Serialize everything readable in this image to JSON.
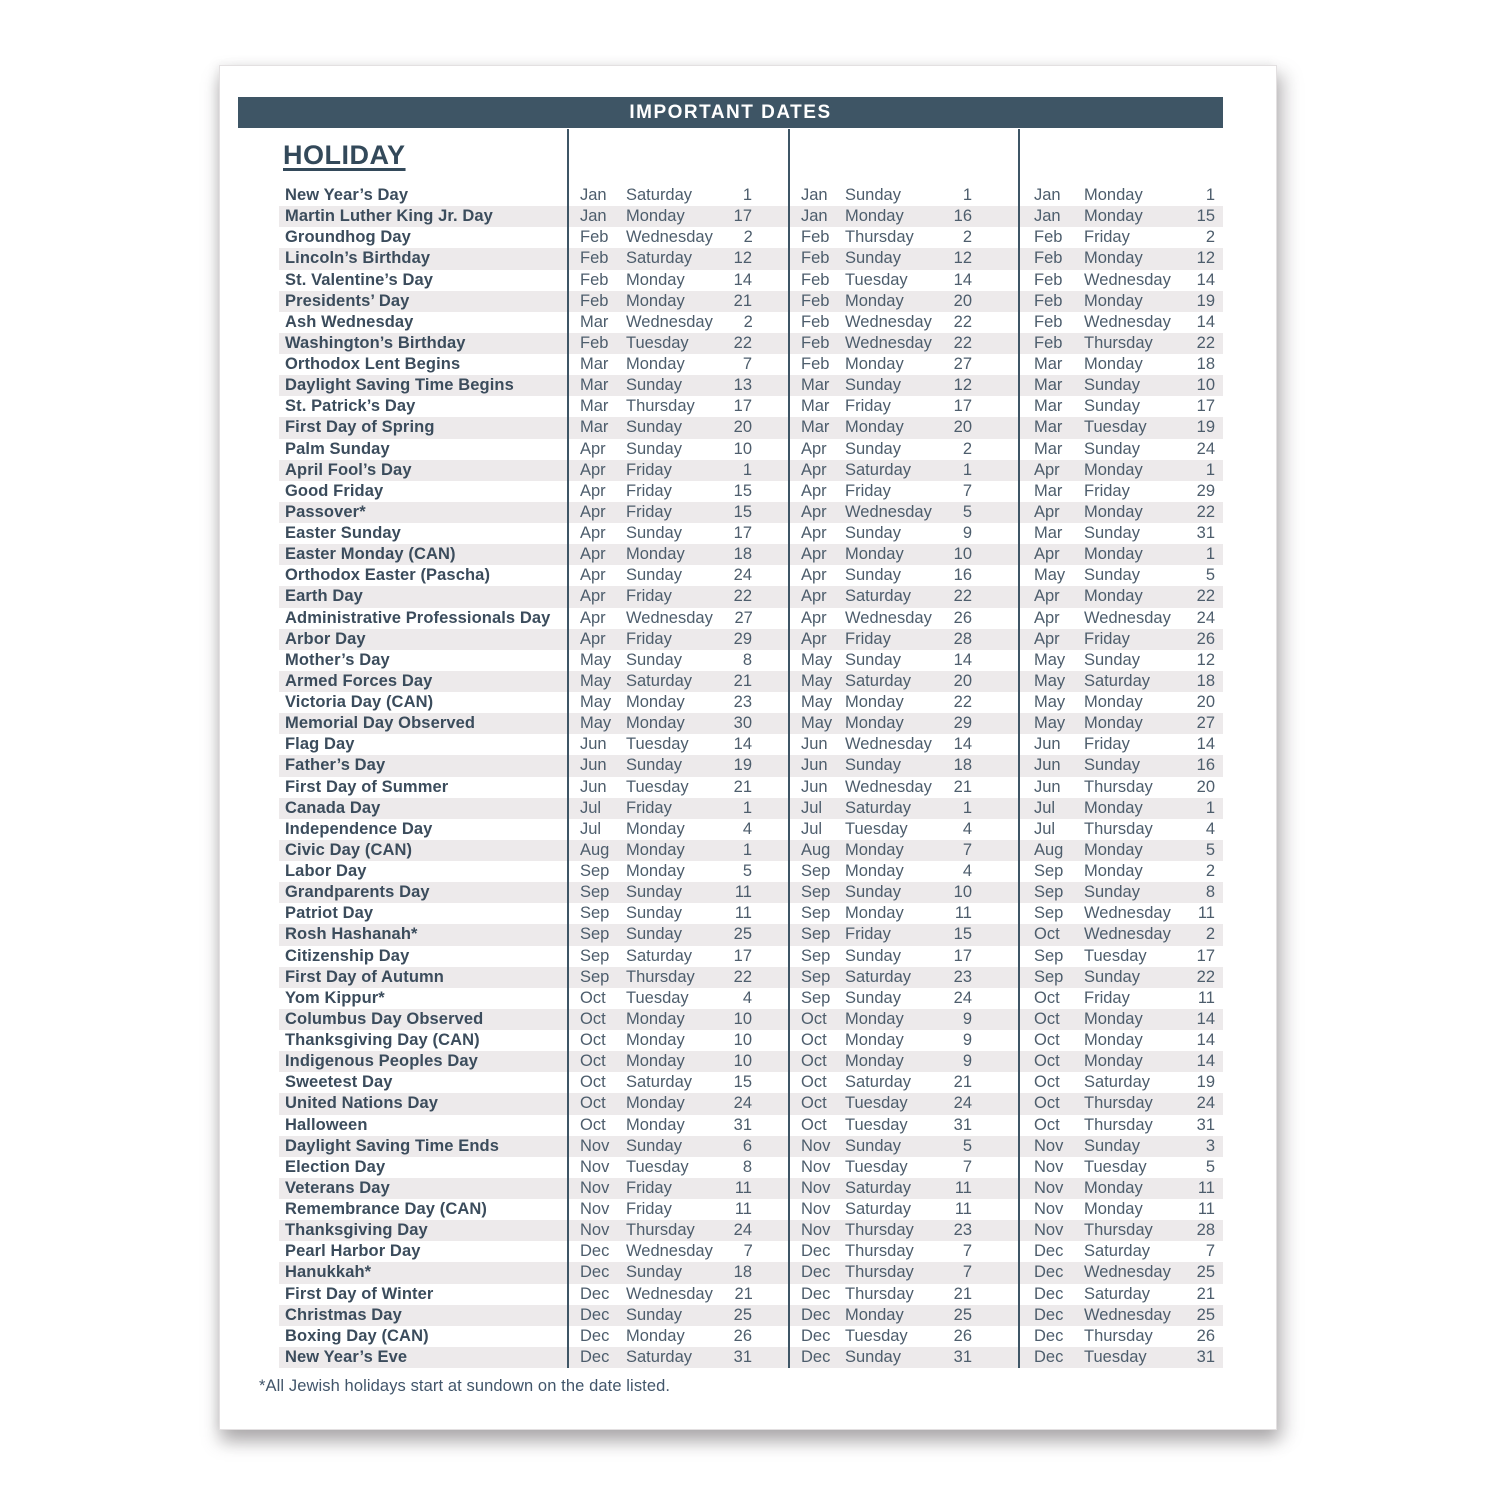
{
  "page": {
    "header_title": "IMPORTANT DATES",
    "section_title": "HOLIDAY",
    "footnote": "*All Jewish holidays start at sundown on the date listed."
  },
  "colors": {
    "header_bar": "#3e5565",
    "row_stripe": "#edeaeb",
    "name_text": "#3b4c5c",
    "date_text": "#4d5d6c"
  },
  "table": {
    "rows": [
      {
        "name": "New Year’s Day",
        "cols": [
          [
            "Jan",
            "Saturday",
            "1"
          ],
          [
            "Jan",
            "Sunday",
            "1"
          ],
          [
            "Jan",
            "Monday",
            "1"
          ]
        ]
      },
      {
        "name": "Martin Luther King Jr. Day",
        "cols": [
          [
            "Jan",
            "Monday",
            "17"
          ],
          [
            "Jan",
            "Monday",
            "16"
          ],
          [
            "Jan",
            "Monday",
            "15"
          ]
        ]
      },
      {
        "name": "Groundhog Day",
        "cols": [
          [
            "Feb",
            "Wednesday",
            "2"
          ],
          [
            "Feb",
            "Thursday",
            "2"
          ],
          [
            "Feb",
            "Friday",
            "2"
          ]
        ]
      },
      {
        "name": "Lincoln’s Birthday",
        "cols": [
          [
            "Feb",
            "Saturday",
            "12"
          ],
          [
            "Feb",
            "Sunday",
            "12"
          ],
          [
            "Feb",
            "Monday",
            "12"
          ]
        ]
      },
      {
        "name": "St. Valentine’s Day",
        "cols": [
          [
            "Feb",
            "Monday",
            "14"
          ],
          [
            "Feb",
            "Tuesday",
            "14"
          ],
          [
            "Feb",
            "Wednesday",
            "14"
          ]
        ]
      },
      {
        "name": "Presidents’ Day",
        "cols": [
          [
            "Feb",
            "Monday",
            "21"
          ],
          [
            "Feb",
            "Monday",
            "20"
          ],
          [
            "Feb",
            "Monday",
            "19"
          ]
        ]
      },
      {
        "name": "Ash Wednesday",
        "cols": [
          [
            "Mar",
            "Wednesday",
            "2"
          ],
          [
            "Feb",
            "Wednesday",
            "22"
          ],
          [
            "Feb",
            "Wednesday",
            "14"
          ]
        ]
      },
      {
        "name": "Washington’s Birthday",
        "cols": [
          [
            "Feb",
            "Tuesday",
            "22"
          ],
          [
            "Feb",
            "Wednesday",
            "22"
          ],
          [
            "Feb",
            "Thursday",
            "22"
          ]
        ]
      },
      {
        "name": "Orthodox Lent Begins",
        "cols": [
          [
            "Mar",
            "Monday",
            "7"
          ],
          [
            "Feb",
            "Monday",
            "27"
          ],
          [
            "Mar",
            "Monday",
            "18"
          ]
        ]
      },
      {
        "name": "Daylight Saving Time Begins",
        "cols": [
          [
            "Mar",
            "Sunday",
            "13"
          ],
          [
            "Mar",
            "Sunday",
            "12"
          ],
          [
            "Mar",
            "Sunday",
            "10"
          ]
        ]
      },
      {
        "name": "St. Patrick’s Day",
        "cols": [
          [
            "Mar",
            "Thursday",
            "17"
          ],
          [
            "Mar",
            "Friday",
            "17"
          ],
          [
            "Mar",
            "Sunday",
            "17"
          ]
        ]
      },
      {
        "name": "First Day of Spring",
        "cols": [
          [
            "Mar",
            "Sunday",
            "20"
          ],
          [
            "Mar",
            "Monday",
            "20"
          ],
          [
            "Mar",
            "Tuesday",
            "19"
          ]
        ]
      },
      {
        "name": "Palm Sunday",
        "cols": [
          [
            "Apr",
            "Sunday",
            "10"
          ],
          [
            "Apr",
            "Sunday",
            "2"
          ],
          [
            "Mar",
            "Sunday",
            "24"
          ]
        ]
      },
      {
        "name": "April Fool’s Day",
        "cols": [
          [
            "Apr",
            "Friday",
            "1"
          ],
          [
            "Apr",
            "Saturday",
            "1"
          ],
          [
            "Apr",
            "Monday",
            "1"
          ]
        ]
      },
      {
        "name": "Good Friday",
        "cols": [
          [
            "Apr",
            "Friday",
            "15"
          ],
          [
            "Apr",
            "Friday",
            "7"
          ],
          [
            "Mar",
            "Friday",
            "29"
          ]
        ]
      },
      {
        "name": "Passover*",
        "cols": [
          [
            "Apr",
            "Friday",
            "15"
          ],
          [
            "Apr",
            "Wednesday",
            "5"
          ],
          [
            "Apr",
            "Monday",
            "22"
          ]
        ]
      },
      {
        "name": "Easter Sunday",
        "cols": [
          [
            "Apr",
            "Sunday",
            "17"
          ],
          [
            "Apr",
            "Sunday",
            "9"
          ],
          [
            "Mar",
            "Sunday",
            "31"
          ]
        ]
      },
      {
        "name": "Easter Monday (CAN)",
        "cols": [
          [
            "Apr",
            "Monday",
            "18"
          ],
          [
            "Apr",
            "Monday",
            "10"
          ],
          [
            "Apr",
            "Monday",
            "1"
          ]
        ]
      },
      {
        "name": "Orthodox Easter (Pascha)",
        "cols": [
          [
            "Apr",
            "Sunday",
            "24"
          ],
          [
            "Apr",
            "Sunday",
            "16"
          ],
          [
            "May",
            "Sunday",
            "5"
          ]
        ]
      },
      {
        "name": "Earth Day",
        "cols": [
          [
            "Apr",
            "Friday",
            "22"
          ],
          [
            "Apr",
            "Saturday",
            "22"
          ],
          [
            "Apr",
            "Monday",
            "22"
          ]
        ]
      },
      {
        "name": "Administrative Professionals Day",
        "cols": [
          [
            "Apr",
            "Wednesday",
            "27"
          ],
          [
            "Apr",
            "Wednesday",
            "26"
          ],
          [
            "Apr",
            "Wednesday",
            "24"
          ]
        ]
      },
      {
        "name": "Arbor Day",
        "cols": [
          [
            "Apr",
            "Friday",
            "29"
          ],
          [
            "Apr",
            "Friday",
            "28"
          ],
          [
            "Apr",
            "Friday",
            "26"
          ]
        ]
      },
      {
        "name": "Mother’s Day",
        "cols": [
          [
            "May",
            "Sunday",
            "8"
          ],
          [
            "May",
            "Sunday",
            "14"
          ],
          [
            "May",
            "Sunday",
            "12"
          ]
        ]
      },
      {
        "name": "Armed Forces Day",
        "cols": [
          [
            "May",
            "Saturday",
            "21"
          ],
          [
            "May",
            "Saturday",
            "20"
          ],
          [
            "May",
            "Saturday",
            "18"
          ]
        ]
      },
      {
        "name": "Victoria Day (CAN)",
        "cols": [
          [
            "May",
            "Monday",
            "23"
          ],
          [
            "May",
            "Monday",
            "22"
          ],
          [
            "May",
            "Monday",
            "20"
          ]
        ]
      },
      {
        "name": "Memorial Day Observed",
        "cols": [
          [
            "May",
            "Monday",
            "30"
          ],
          [
            "May",
            "Monday",
            "29"
          ],
          [
            "May",
            "Monday",
            "27"
          ]
        ]
      },
      {
        "name": "Flag Day",
        "cols": [
          [
            "Jun",
            "Tuesday",
            "14"
          ],
          [
            "Jun",
            "Wednesday",
            "14"
          ],
          [
            "Jun",
            "Friday",
            "14"
          ]
        ]
      },
      {
        "name": "Father’s Day",
        "cols": [
          [
            "Jun",
            "Sunday",
            "19"
          ],
          [
            "Jun",
            "Sunday",
            "18"
          ],
          [
            "Jun",
            "Sunday",
            "16"
          ]
        ]
      },
      {
        "name": "First Day of Summer",
        "cols": [
          [
            "Jun",
            "Tuesday",
            "21"
          ],
          [
            "Jun",
            "Wednesday",
            "21"
          ],
          [
            "Jun",
            "Thursday",
            "20"
          ]
        ]
      },
      {
        "name": "Canada Day",
        "cols": [
          [
            "Jul",
            "Friday",
            "1"
          ],
          [
            "Jul",
            "Saturday",
            "1"
          ],
          [
            "Jul",
            "Monday",
            "1"
          ]
        ]
      },
      {
        "name": "Independence Day",
        "cols": [
          [
            "Jul",
            "Monday",
            "4"
          ],
          [
            "Jul",
            "Tuesday",
            "4"
          ],
          [
            "Jul",
            "Thursday",
            "4"
          ]
        ]
      },
      {
        "name": "Civic Day (CAN)",
        "cols": [
          [
            "Aug",
            "Monday",
            "1"
          ],
          [
            "Aug",
            "Monday",
            "7"
          ],
          [
            "Aug",
            "Monday",
            "5"
          ]
        ]
      },
      {
        "name": "Labor Day",
        "cols": [
          [
            "Sep",
            "Monday",
            "5"
          ],
          [
            "Sep",
            "Monday",
            "4"
          ],
          [
            "Sep",
            "Monday",
            "2"
          ]
        ]
      },
      {
        "name": "Grandparents Day",
        "cols": [
          [
            "Sep",
            "Sunday",
            "11"
          ],
          [
            "Sep",
            "Sunday",
            "10"
          ],
          [
            "Sep",
            "Sunday",
            "8"
          ]
        ]
      },
      {
        "name": "Patriot Day",
        "cols": [
          [
            "Sep",
            "Sunday",
            "11"
          ],
          [
            "Sep",
            "Monday",
            "11"
          ],
          [
            "Sep",
            "Wednesday",
            "11"
          ]
        ]
      },
      {
        "name": "Rosh Hashanah*",
        "cols": [
          [
            "Sep",
            "Sunday",
            "25"
          ],
          [
            "Sep",
            "Friday",
            "15"
          ],
          [
            "Oct",
            "Wednesday",
            "2"
          ]
        ]
      },
      {
        "name": "Citizenship Day",
        "cols": [
          [
            "Sep",
            "Saturday",
            "17"
          ],
          [
            "Sep",
            "Sunday",
            "17"
          ],
          [
            "Sep",
            "Tuesday",
            "17"
          ]
        ]
      },
      {
        "name": "First Day of Autumn",
        "cols": [
          [
            "Sep",
            "Thursday",
            "22"
          ],
          [
            "Sep",
            "Saturday",
            "23"
          ],
          [
            "Sep",
            "Sunday",
            "22"
          ]
        ]
      },
      {
        "name": "Yom Kippur*",
        "cols": [
          [
            "Oct",
            "Tuesday",
            "4"
          ],
          [
            "Sep",
            "Sunday",
            "24"
          ],
          [
            "Oct",
            "Friday",
            "11"
          ]
        ]
      },
      {
        "name": "Columbus Day Observed",
        "cols": [
          [
            "Oct",
            "Monday",
            "10"
          ],
          [
            "Oct",
            "Monday",
            "9"
          ],
          [
            "Oct",
            "Monday",
            "14"
          ]
        ]
      },
      {
        "name": "Thanksgiving Day (CAN)",
        "cols": [
          [
            "Oct",
            "Monday",
            "10"
          ],
          [
            "Oct",
            "Monday",
            "9"
          ],
          [
            "Oct",
            "Monday",
            "14"
          ]
        ]
      },
      {
        "name": "Indigenous Peoples Day",
        "cols": [
          [
            "Oct",
            "Monday",
            "10"
          ],
          [
            "Oct",
            "Monday",
            "9"
          ],
          [
            "Oct",
            "Monday",
            "14"
          ]
        ]
      },
      {
        "name": "Sweetest Day",
        "cols": [
          [
            "Oct",
            "Saturday",
            "15"
          ],
          [
            "Oct",
            "Saturday",
            "21"
          ],
          [
            "Oct",
            "Saturday",
            "19"
          ]
        ]
      },
      {
        "name": "United Nations Day",
        "cols": [
          [
            "Oct",
            "Monday",
            "24"
          ],
          [
            "Oct",
            "Tuesday",
            "24"
          ],
          [
            "Oct",
            "Thursday",
            "24"
          ]
        ]
      },
      {
        "name": "Halloween",
        "cols": [
          [
            "Oct",
            "Monday",
            "31"
          ],
          [
            "Oct",
            "Tuesday",
            "31"
          ],
          [
            "Oct",
            "Thursday",
            "31"
          ]
        ]
      },
      {
        "name": "Daylight Saving Time Ends",
        "cols": [
          [
            "Nov",
            "Sunday",
            "6"
          ],
          [
            "Nov",
            "Sunday",
            "5"
          ],
          [
            "Nov",
            "Sunday",
            "3"
          ]
        ]
      },
      {
        "name": "Election Day",
        "cols": [
          [
            "Nov",
            "Tuesday",
            "8"
          ],
          [
            "Nov",
            "Tuesday",
            "7"
          ],
          [
            "Nov",
            "Tuesday",
            "5"
          ]
        ]
      },
      {
        "name": "Veterans Day",
        "cols": [
          [
            "Nov",
            "Friday",
            "11"
          ],
          [
            "Nov",
            "Saturday",
            "11"
          ],
          [
            "Nov",
            "Monday",
            "11"
          ]
        ]
      },
      {
        "name": "Remembrance Day (CAN)",
        "cols": [
          [
            "Nov",
            "Friday",
            "11"
          ],
          [
            "Nov",
            "Saturday",
            "11"
          ],
          [
            "Nov",
            "Monday",
            "11"
          ]
        ]
      },
      {
        "name": "Thanksgiving Day",
        "cols": [
          [
            "Nov",
            "Thursday",
            "24"
          ],
          [
            "Nov",
            "Thursday",
            "23"
          ],
          [
            "Nov",
            "Thursday",
            "28"
          ]
        ]
      },
      {
        "name": "Pearl Harbor Day",
        "cols": [
          [
            "Dec",
            "Wednesday",
            "7"
          ],
          [
            "Dec",
            "Thursday",
            "7"
          ],
          [
            "Dec",
            "Saturday",
            "7"
          ]
        ]
      },
      {
        "name": "Hanukkah*",
        "cols": [
          [
            "Dec",
            "Sunday",
            "18"
          ],
          [
            "Dec",
            "Thursday",
            "7"
          ],
          [
            "Dec",
            "Wednesday",
            "25"
          ]
        ]
      },
      {
        "name": "First Day of Winter",
        "cols": [
          [
            "Dec",
            "Wednesday",
            "21"
          ],
          [
            "Dec",
            "Thursday",
            "21"
          ],
          [
            "Dec",
            "Saturday",
            "21"
          ]
        ]
      },
      {
        "name": "Christmas Day",
        "cols": [
          [
            "Dec",
            "Sunday",
            "25"
          ],
          [
            "Dec",
            "Monday",
            "25"
          ],
          [
            "Dec",
            "Wednesday",
            "25"
          ]
        ]
      },
      {
        "name": "Boxing Day (CAN)",
        "cols": [
          [
            "Dec",
            "Monday",
            "26"
          ],
          [
            "Dec",
            "Tuesday",
            "26"
          ],
          [
            "Dec",
            "Thursday",
            "26"
          ]
        ]
      },
      {
        "name": "New Year’s Eve",
        "cols": [
          [
            "Dec",
            "Saturday",
            "31"
          ],
          [
            "Dec",
            "Sunday",
            "31"
          ],
          [
            "Dec",
            "Tuesday",
            "31"
          ]
        ]
      }
    ]
  }
}
